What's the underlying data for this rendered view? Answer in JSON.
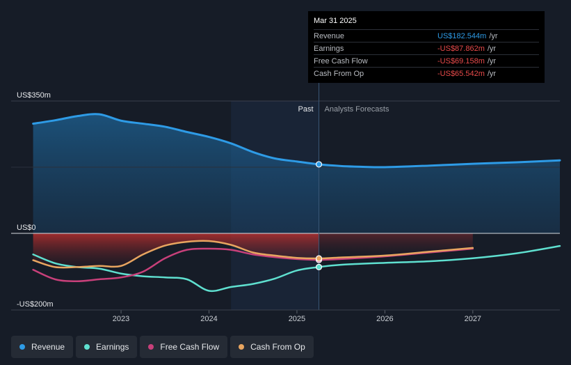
{
  "chart_data": {
    "type": "area",
    "ylim": [
      -200,
      350
    ],
    "y_ticks": [
      {
        "value": 350,
        "label": "US$350m"
      },
      {
        "value": 0,
        "label": "US$0"
      },
      {
        "value": -200,
        "label": "-US$200m"
      }
    ],
    "x_ticks": [
      {
        "value": 2023.0,
        "label": "2023"
      },
      {
        "value": 2024.0,
        "label": "2024"
      },
      {
        "value": 2025.0,
        "label": "2025"
      },
      {
        "value": 2026.0,
        "label": "2026"
      },
      {
        "value": 2027.0,
        "label": "2027"
      }
    ],
    "xlim": [
      2021.75,
      2027.99
    ],
    "divider_x": 2025.25,
    "past_label": "Past",
    "forecast_label": "Analysts Forecasts",
    "series": [
      {
        "name": "Revenue",
        "color": "#2e9be6",
        "points": [
          [
            2022.0,
            290
          ],
          [
            2022.25,
            299
          ],
          [
            2022.5,
            310
          ],
          [
            2022.75,
            315
          ],
          [
            2023.0,
            298
          ],
          [
            2023.25,
            290
          ],
          [
            2023.5,
            282
          ],
          [
            2023.75,
            268
          ],
          [
            2024.0,
            255
          ],
          [
            2024.25,
            238
          ],
          [
            2024.5,
            215
          ],
          [
            2024.75,
            198
          ],
          [
            2025.0,
            190
          ],
          [
            2025.25,
            182.5
          ],
          [
            2025.5,
            178
          ],
          [
            2025.75,
            176
          ],
          [
            2026.0,
            175
          ],
          [
            2026.5,
            179
          ],
          [
            2027.0,
            184
          ],
          [
            2027.5,
            188
          ],
          [
            2027.99,
            193
          ]
        ]
      },
      {
        "name": "Earnings",
        "color": "#5fe0d0",
        "points": [
          [
            2022.0,
            -55
          ],
          [
            2022.25,
            -78
          ],
          [
            2022.5,
            -88
          ],
          [
            2022.75,
            -92
          ],
          [
            2023.0,
            -105
          ],
          [
            2023.25,
            -112
          ],
          [
            2023.5,
            -115
          ],
          [
            2023.75,
            -120
          ],
          [
            2024.0,
            -150
          ],
          [
            2024.25,
            -140
          ],
          [
            2024.5,
            -132
          ],
          [
            2024.75,
            -118
          ],
          [
            2025.0,
            -97
          ],
          [
            2025.25,
            -87.9
          ],
          [
            2025.5,
            -82
          ],
          [
            2026.0,
            -77
          ],
          [
            2026.5,
            -73
          ],
          [
            2027.0,
            -65
          ],
          [
            2027.5,
            -52
          ],
          [
            2027.99,
            -33
          ]
        ]
      },
      {
        "name": "Free Cash Flow",
        "color": "#c8407a",
        "points": [
          [
            2022.0,
            -95
          ],
          [
            2022.25,
            -120
          ],
          [
            2022.5,
            -125
          ],
          [
            2022.75,
            -120
          ],
          [
            2023.0,
            -115
          ],
          [
            2023.25,
            -100
          ],
          [
            2023.5,
            -65
          ],
          [
            2023.75,
            -43
          ],
          [
            2024.0,
            -40
          ],
          [
            2024.25,
            -43
          ],
          [
            2024.5,
            -55
          ],
          [
            2024.75,
            -62
          ],
          [
            2025.0,
            -67
          ],
          [
            2025.25,
            -69.2
          ],
          [
            2025.5,
            -67
          ],
          [
            2026.0,
            -60
          ],
          [
            2026.5,
            -50
          ],
          [
            2027.0,
            -40
          ]
        ]
      },
      {
        "name": "Cash From Op",
        "color": "#e8a560",
        "points": [
          [
            2022.0,
            -70
          ],
          [
            2022.25,
            -88
          ],
          [
            2022.5,
            -88
          ],
          [
            2022.75,
            -85
          ],
          [
            2023.0,
            -85
          ],
          [
            2023.25,
            -55
          ],
          [
            2023.5,
            -32
          ],
          [
            2023.75,
            -22
          ],
          [
            2024.0,
            -20
          ],
          [
            2024.25,
            -30
          ],
          [
            2024.5,
            -50
          ],
          [
            2024.75,
            -58
          ],
          [
            2025.0,
            -64
          ],
          [
            2025.25,
            -65.5
          ],
          [
            2025.5,
            -63
          ],
          [
            2026.0,
            -58
          ],
          [
            2026.5,
            -48
          ],
          [
            2027.0,
            -38
          ]
        ]
      }
    ]
  },
  "tooltip": {
    "date": "Mar 31 2025",
    "rows": [
      {
        "label": "Revenue",
        "value": "US$182.544m",
        "unit": "/yr",
        "color": "#2e9be6"
      },
      {
        "label": "Earnings",
        "value": "-US$87.862m",
        "unit": "/yr",
        "color": "#e84a4a"
      },
      {
        "label": "Free Cash Flow",
        "value": "-US$69.158m",
        "unit": "/yr",
        "color": "#e84a4a"
      },
      {
        "label": "Cash From Op",
        "value": "-US$65.542m",
        "unit": "/yr",
        "color": "#e84a4a"
      }
    ]
  },
  "legend": [
    {
      "label": "Revenue",
      "color": "#2e9be6"
    },
    {
      "label": "Earnings",
      "color": "#5fe0d0"
    },
    {
      "label": "Free Cash Flow",
      "color": "#c8407a"
    },
    {
      "label": "Cash From Op",
      "color": "#e8a560"
    }
  ]
}
